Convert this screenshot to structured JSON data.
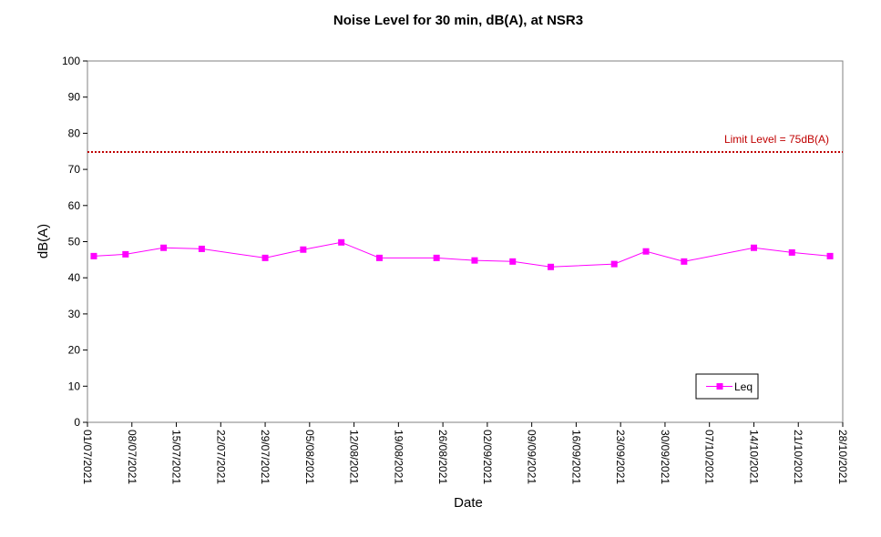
{
  "chart_data": {
    "type": "line",
    "title": "Noise Level for 30 min, dB(A), at NSR3",
    "xlabel": "Date",
    "ylabel": "dB(A)",
    "ylim": [
      0,
      100
    ],
    "yticks": [
      0,
      10,
      20,
      30,
      40,
      50,
      60,
      70,
      80,
      90,
      100
    ],
    "xlim": [
      "01/07/2021",
      "28/10/2021"
    ],
    "xticks": [
      "01/07/2021",
      "08/07/2021",
      "15/07/2021",
      "22/07/2021",
      "29/07/2021",
      "05/08/2021",
      "12/08/2021",
      "19/08/2021",
      "26/08/2021",
      "02/09/2021",
      "09/09/2021",
      "16/09/2021",
      "23/09/2021",
      "30/09/2021",
      "07/10/2021",
      "14/10/2021",
      "21/10/2021",
      "28/10/2021"
    ],
    "grid": false,
    "legend_position": "bottom-right",
    "series": [
      {
        "name": "Leq",
        "color": "#ff00ff",
        "marker": "square",
        "x": [
          "02/07/2021",
          "07/07/2021",
          "13/07/2021",
          "19/07/2021",
          "29/07/2021",
          "04/08/2021",
          "10/08/2021",
          "16/08/2021",
          "25/08/2021",
          "31/08/2021",
          "06/09/2021",
          "12/09/2021",
          "22/09/2021",
          "27/09/2021",
          "03/10/2021",
          "14/10/2021",
          "20/10/2021",
          "26/10/2021"
        ],
        "y": [
          46.0,
          46.5,
          48.3,
          48.0,
          45.5,
          47.8,
          49.8,
          45.5,
          45.5,
          44.8,
          44.5,
          43.0,
          43.8,
          47.3,
          44.5,
          48.3,
          47.0,
          46.0
        ]
      }
    ],
    "reference_lines": [
      {
        "label": "Limit Level  = 75dB(A)",
        "y": 74.8,
        "color": "#c00000",
        "style": "dotted"
      }
    ]
  }
}
